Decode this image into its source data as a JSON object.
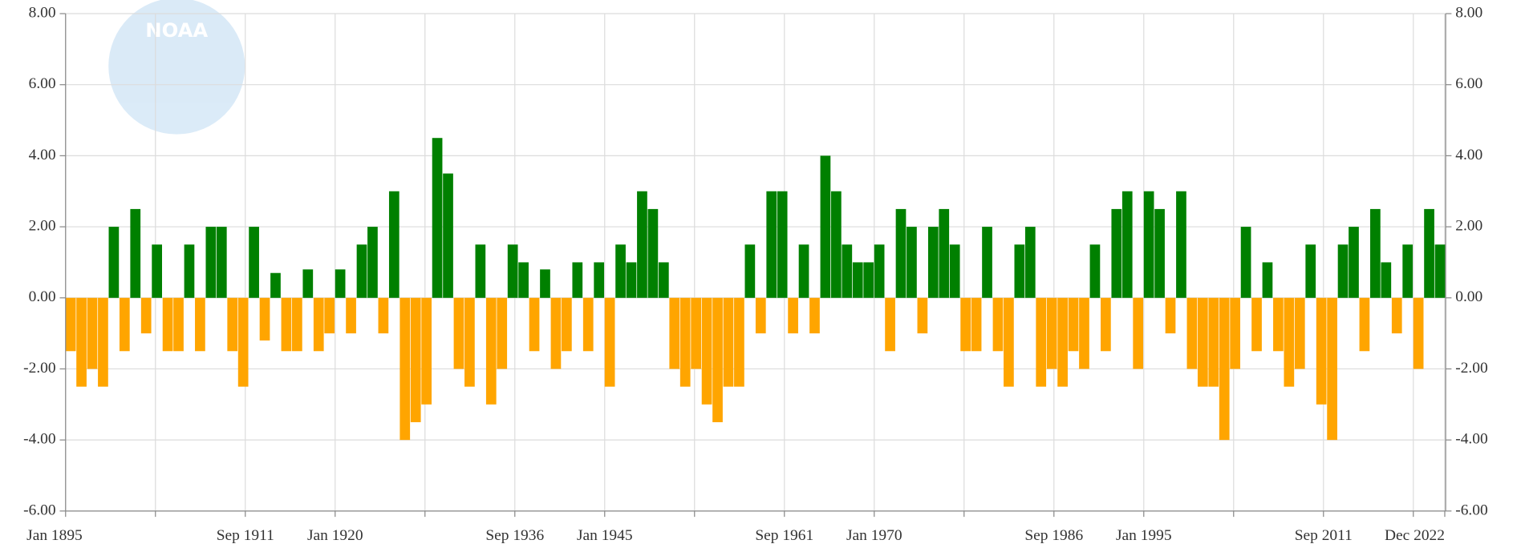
{
  "chart_data": {
    "type": "bar",
    "logo_text": "NOAA",
    "x": [
      1895,
      1896,
      1897,
      1898,
      1899,
      1900,
      1901,
      1902,
      1903,
      1904,
      1905,
      1906,
      1907,
      1908,
      1909,
      1910,
      1911,
      1912,
      1913,
      1914,
      1915,
      1916,
      1917,
      1918,
      1919,
      1920,
      1921,
      1922,
      1923,
      1924,
      1925,
      1926,
      1927,
      1928,
      1929,
      1930,
      1931,
      1932,
      1933,
      1934,
      1935,
      1936,
      1937,
      1938,
      1939,
      1940,
      1941,
      1942,
      1943,
      1944,
      1945,
      1946,
      1947,
      1948,
      1949,
      1950,
      1951,
      1952,
      1953,
      1954,
      1955,
      1956,
      1957,
      1958,
      1959,
      1960,
      1961,
      1962,
      1963,
      1964,
      1965,
      1966,
      1967,
      1968,
      1969,
      1970,
      1971,
      1972,
      1973,
      1974,
      1975,
      1976,
      1977,
      1978,
      1979,
      1980,
      1981,
      1982,
      1983,
      1984,
      1985,
      1986,
      1987,
      1988,
      1989,
      1990,
      1991,
      1992,
      1993,
      1994,
      1995,
      1996,
      1997,
      1998,
      1999,
      2000,
      2001,
      2002,
      2003,
      2004,
      2005,
      2006,
      2007,
      2008,
      2009,
      2010,
      2011,
      2012,
      2013,
      2014,
      2015,
      2016,
      2017,
      2018,
      2019,
      2020,
      2021,
      2022
    ],
    "values": [
      -1.5,
      -2.5,
      -2,
      -2.5,
      2,
      -1.5,
      2.5,
      -1,
      1.5,
      -1.5,
      -1.5,
      1.5,
      -1.5,
      2,
      2,
      -1.5,
      -2.5,
      2,
      -1.2,
      0.7,
      -1.5,
      -1.5,
      0.8,
      -1.5,
      -1,
      0.8,
      -1,
      1.5,
      2,
      -1,
      3,
      -4,
      -3.5,
      -3,
      4.5,
      3.5,
      -2,
      -2.5,
      1.5,
      -3,
      -2,
      1.5,
      1,
      -1.5,
      0.8,
      -2,
      -1.5,
      1,
      -1.5,
      1,
      -2.5,
      1.5,
      1,
      3,
      2.5,
      1,
      -2,
      -2.5,
      -2,
      -3,
      -3.5,
      -2.5,
      -2.5,
      1.5,
      -1,
      3,
      3,
      -1,
      1.5,
      -1,
      4,
      3,
      1.5,
      1,
      1,
      1.5,
      -1.5,
      2.5,
      2,
      -1,
      2,
      2.5,
      1.5,
      -1.5,
      -1.5,
      2,
      -1.5,
      -2.5,
      1.5,
      2,
      -2.5,
      -2,
      -2.5,
      -1.5,
      -2,
      1.5,
      -1.5,
      2.5,
      3,
      -2,
      3,
      2.5,
      -1,
      3,
      -2,
      -2.5,
      -2.5,
      -4,
      -2,
      2,
      -1.5,
      1,
      -1.5,
      -2.5,
      -2,
      1.5,
      -3,
      -4,
      1.5,
      2,
      -1.5,
      2.5,
      1,
      -1,
      1.5,
      -2,
      2.5,
      1.5
    ],
    "positive_color": "#008000",
    "negative_color": "#ffa500",
    "xlim": [
      1895,
      2023
    ],
    "xticks": [
      {
        "value": 1895,
        "label": "Jan 1895"
      },
      {
        "value": 1911.667,
        "label": "Sep 1911"
      },
      {
        "value": 1920,
        "label": "Jan 1920"
      },
      {
        "value": 1936.667,
        "label": "Sep 1936"
      },
      {
        "value": 1945,
        "label": "Jan 1945"
      },
      {
        "value": 1961.667,
        "label": "Sep 1961"
      },
      {
        "value": 1970,
        "label": "Jan 1970"
      },
      {
        "value": 1986.667,
        "label": "Sep 1986"
      },
      {
        "value": 1995,
        "label": "Jan 1995"
      },
      {
        "value": 2011.667,
        "label": "Sep 2011"
      },
      {
        "value": 2022.917,
        "label": "Dec 2022"
      }
    ],
    "xgrid": [
      1903.333,
      1928.333,
      1953.333,
      1978.333,
      2003.333,
      2020
    ],
    "ylim": [
      -6,
      8
    ],
    "yticks": [
      {
        "value": -6,
        "label": "-6.00"
      },
      {
        "value": -4,
        "label": "-4.00"
      },
      {
        "value": -2,
        "label": "-2.00"
      },
      {
        "value": 0,
        "label": "0.00"
      },
      {
        "value": 2,
        "label": "2.00"
      },
      {
        "value": 4,
        "label": "4.00"
      },
      {
        "value": 6,
        "label": "6.00"
      },
      {
        "value": 8,
        "label": "8.00"
      }
    ],
    "y2lim": [
      -6,
      8
    ],
    "y2ticks": [
      {
        "value": -6,
        "label": "-6.00"
      },
      {
        "value": -4,
        "label": "-4.00"
      },
      {
        "value": -2,
        "label": "-2.00"
      },
      {
        "value": 0,
        "label": "0.00"
      },
      {
        "value": 2,
        "label": "2.00"
      },
      {
        "value": 4,
        "label": "4.00"
      },
      {
        "value": 6,
        "label": "6.00"
      },
      {
        "value": 8,
        "label": "8.00"
      }
    ],
    "grid": true
  }
}
